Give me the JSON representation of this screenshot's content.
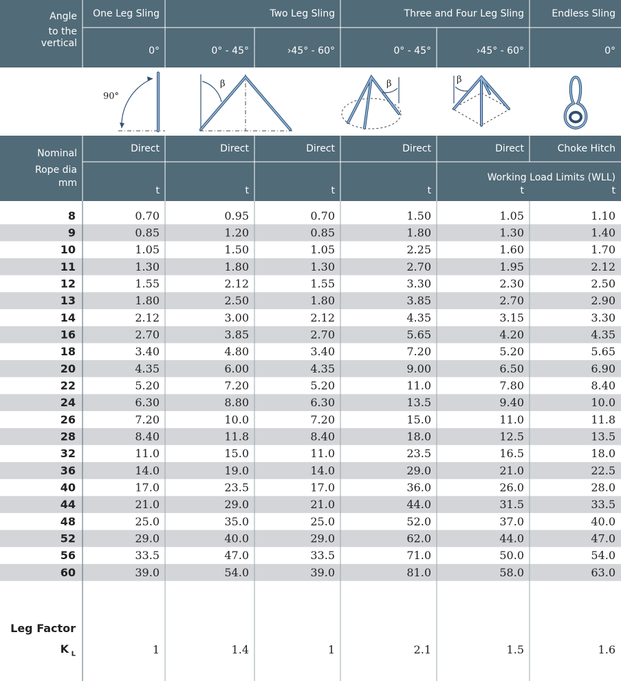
{
  "top_header": {
    "angle_label": [
      "Angle",
      "to the",
      "vertical"
    ],
    "groups": [
      "One Leg Sling",
      "Two Leg Sling",
      "Three and Four Leg Sling",
      "Endless Sling"
    ],
    "angles": [
      "0°",
      "0° - 45°",
      "›45° - 60°",
      "0° - 45°",
      "›45° - 60°",
      "0°"
    ]
  },
  "diagram_labels": [
    "90°",
    "β",
    "β",
    "β"
  ],
  "table_header": {
    "diameter_label": [
      "Nominal",
      "Rope dia",
      "mm"
    ],
    "methods": [
      "Direct",
      "Direct",
      "Direct",
      "Direct",
      "Direct",
      "Choke Hitch"
    ],
    "wll_label": "Working Load Limits (WLL)",
    "units": [
      "t",
      "t",
      "t",
      "t",
      "t",
      "t"
    ]
  },
  "table": {
    "rows": [
      [
        "8",
        "0.70",
        "0.95",
        "0.70",
        "1.50",
        "1.05",
        "1.10"
      ],
      [
        "9",
        "0.85",
        "1.20",
        "0.85",
        "1.80",
        "1.30",
        "1.40"
      ],
      [
        "10",
        "1.05",
        "1.50",
        "1.05",
        "2.25",
        "1.60",
        "1.70"
      ],
      [
        "11",
        "1.30",
        "1.80",
        "1.30",
        "2.70",
        "1.95",
        "2.12"
      ],
      [
        "12",
        "1.55",
        "2.12",
        "1.55",
        "3.30",
        "2.30",
        "2.50"
      ],
      [
        "13",
        "1.80",
        "2.50",
        "1.80",
        "3.85",
        "2.70",
        "2.90"
      ],
      [
        "14",
        "2.12",
        "3.00",
        "2.12",
        "4.35",
        "3.15",
        "3.30"
      ],
      [
        "16",
        "2.70",
        "3.85",
        "2.70",
        "5.65",
        "4.20",
        "4.35"
      ],
      [
        "18",
        "3.40",
        "4.80",
        "3.40",
        "7.20",
        "5.20",
        "5.65"
      ],
      [
        "20",
        "4.35",
        "6.00",
        "4.35",
        "9.00",
        "6.50",
        "6.90"
      ],
      [
        "22",
        "5.20",
        "7.20",
        "5.20",
        "11.0",
        "7.80",
        "8.40"
      ],
      [
        "24",
        "6.30",
        "8.80",
        "6.30",
        "13.5",
        "9.40",
        "10.0"
      ],
      [
        "26",
        "7.20",
        "10.0",
        "7.20",
        "15.0",
        "11.0",
        "11.8"
      ],
      [
        "28",
        "8.40",
        "11.8",
        "8.40",
        "18.0",
        "12.5",
        "13.5"
      ],
      [
        "32",
        "11.0",
        "15.0",
        "11.0",
        "23.5",
        "16.5",
        "18.0"
      ],
      [
        "36",
        "14.0",
        "19.0",
        "14.0",
        "29.0",
        "21.0",
        "22.5"
      ],
      [
        "40",
        "17.0",
        "23.5",
        "17.0",
        "36.0",
        "26.0",
        "28.0"
      ],
      [
        "44",
        "21.0",
        "29.0",
        "21.0",
        "44.0",
        "31.5",
        "33.5"
      ],
      [
        "48",
        "25.0",
        "35.0",
        "25.0",
        "52.0",
        "37.0",
        "40.0"
      ],
      [
        "52",
        "29.0",
        "40.0",
        "29.0",
        "62.0",
        "44.0",
        "47.0"
      ],
      [
        "56",
        "33.5",
        "47.0",
        "33.5",
        "71.0",
        "50.0",
        "54.0"
      ],
      [
        "60",
        "39.0",
        "54.0",
        "39.0",
        "81.0",
        "58.0",
        "63.0"
      ]
    ]
  },
  "leg_factor": {
    "label": "Leg Factor",
    "symbol": "K",
    "subscript": "L",
    "values": [
      "1",
      "1.4",
      "1",
      "2.1",
      "1.5",
      "1.6"
    ]
  }
}
